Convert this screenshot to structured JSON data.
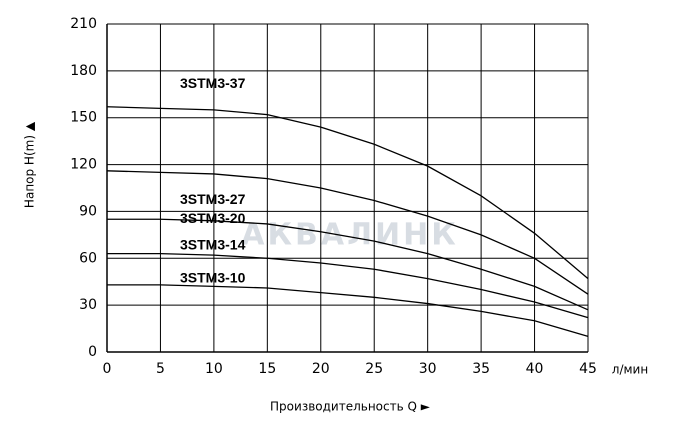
{
  "chart_data": {
    "type": "line",
    "x": [
      0,
      5,
      10,
      15,
      20,
      25,
      30,
      35,
      40,
      45
    ],
    "series": [
      {
        "name": "3STM3-37",
        "color": "#000000",
        "values": [
          157,
          156,
          155,
          152,
          144,
          133,
          119,
          100,
          76,
          47
        ]
      },
      {
        "name": "3STM3-27",
        "color": "#000000",
        "values": [
          116,
          115,
          114,
          111,
          105,
          97,
          87,
          75,
          60,
          37
        ]
      },
      {
        "name": "3STM3-20",
        "color": "#000000",
        "values": [
          85,
          85,
          84,
          82,
          77,
          71,
          63,
          53,
          42,
          27
        ]
      },
      {
        "name": "3STM3-14",
        "color": "#000000",
        "values": [
          63,
          63,
          62,
          60,
          57,
          53,
          47,
          40,
          32,
          22
        ]
      },
      {
        "name": "3STM3-10",
        "color": "#000000",
        "values": [
          43,
          43,
          42,
          41,
          38,
          35,
          31,
          26,
          20,
          10
        ]
      }
    ],
    "xlim": [
      0,
      45
    ],
    "xticks": [
      0,
      5,
      10,
      15,
      20,
      25,
      30,
      35,
      40,
      45
    ],
    "ylim": [
      0,
      210
    ],
    "yticks": [
      0,
      30,
      60,
      90,
      120,
      150,
      180,
      210
    ],
    "grid": true,
    "x_unit": "л/мин",
    "xlabel": "Производительность Q ►",
    "ylabel": "Напор H(m) ▲",
    "watermark": "АКВАЛИНК"
  }
}
